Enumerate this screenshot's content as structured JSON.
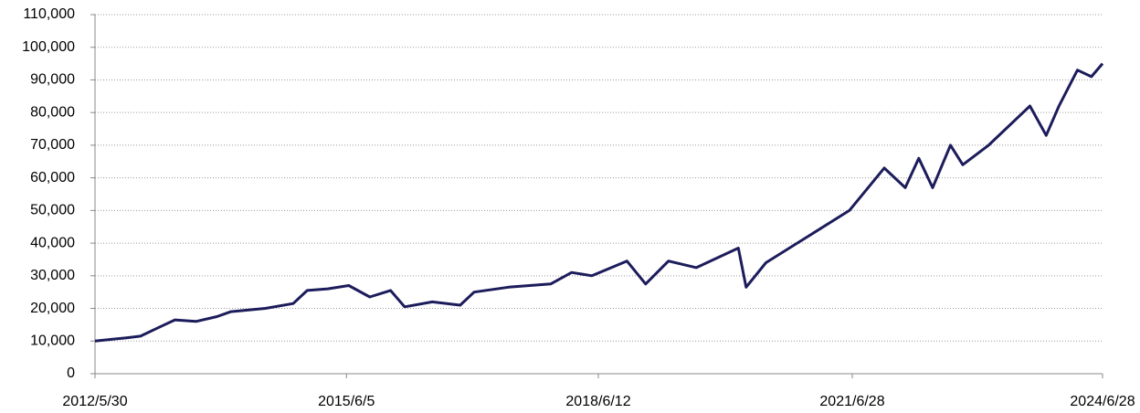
{
  "chart_data": {
    "type": "line",
    "x": [
      "2012/5/30",
      "2012/10/15",
      "2012/12/15",
      "2013/3/15",
      "2013/5/15",
      "2013/8/15",
      "2013/11/15",
      "2014/1/15",
      "2014/6/15",
      "2014/10/15",
      "2014/12/15",
      "2015/3/15",
      "2015/6/15",
      "2015/9/15",
      "2015/12/15",
      "2016/2/15",
      "2016/6/15",
      "2016/10/15",
      "2016/12/15",
      "2017/5/15",
      "2017/11/15",
      "2018/2/15",
      "2018/5/15",
      "2018/10/15",
      "2019/1/5",
      "2019/4/15",
      "2019/8/15",
      "2020/2/15",
      "2020/3/20",
      "2020/6/15",
      "2020/12/15",
      "2021/6/15",
      "2021/11/15",
      "2022/2/15",
      "2022/4/15",
      "2022/6/15",
      "2022/9/1",
      "2022/10/25",
      "2023/2/15",
      "2023/8/15",
      "2023/10/25",
      "2023/12/20",
      "2024/3/10",
      "2024/5/10",
      "2024/6/28"
    ],
    "values": [
      10000,
      11000,
      11500,
      14500,
      16500,
      16000,
      17500,
      19000,
      20000,
      21500,
      25500,
      26000,
      27000,
      23500,
      25500,
      20500,
      22000,
      21000,
      25000,
      26500,
      27500,
      31000,
      30000,
      34500,
      27500,
      34500,
      32500,
      38500,
      26500,
      34000,
      42000,
      50000,
      63000,
      57000,
      66000,
      57000,
      70000,
      64000,
      70000,
      82000,
      73000,
      82000,
      93000,
      91000,
      95000
    ],
    "color": "#1c1c5c",
    "xlim": [
      "2012/5/30",
      "2024/6/28"
    ],
    "xticks": [
      "2012/5/30",
      "2015/6/5",
      "2018/6/12",
      "2021/6/28",
      "2024/6/28"
    ],
    "ylim": [
      0,
      110000
    ],
    "yticks": [
      0,
      {
        "value": 10000,
        "label": "10,000"
      },
      {
        "value": 20000,
        "label": "20,000"
      },
      {
        "value": 30000,
        "label": "30,000"
      },
      {
        "value": 40000,
        "label": "40,000"
      },
      {
        "value": 50000,
        "label": "50,000"
      },
      {
        "value": 60000,
        "label": "60,000"
      },
      {
        "value": 70000,
        "label": "70,000"
      },
      {
        "value": 80000,
        "label": "80,000"
      },
      {
        "value": 90000,
        "label": "90,000"
      },
      {
        "value": 100000,
        "label": "100,000"
      },
      {
        "value": 110000,
        "label": "110,000"
      }
    ],
    "grid": true
  }
}
